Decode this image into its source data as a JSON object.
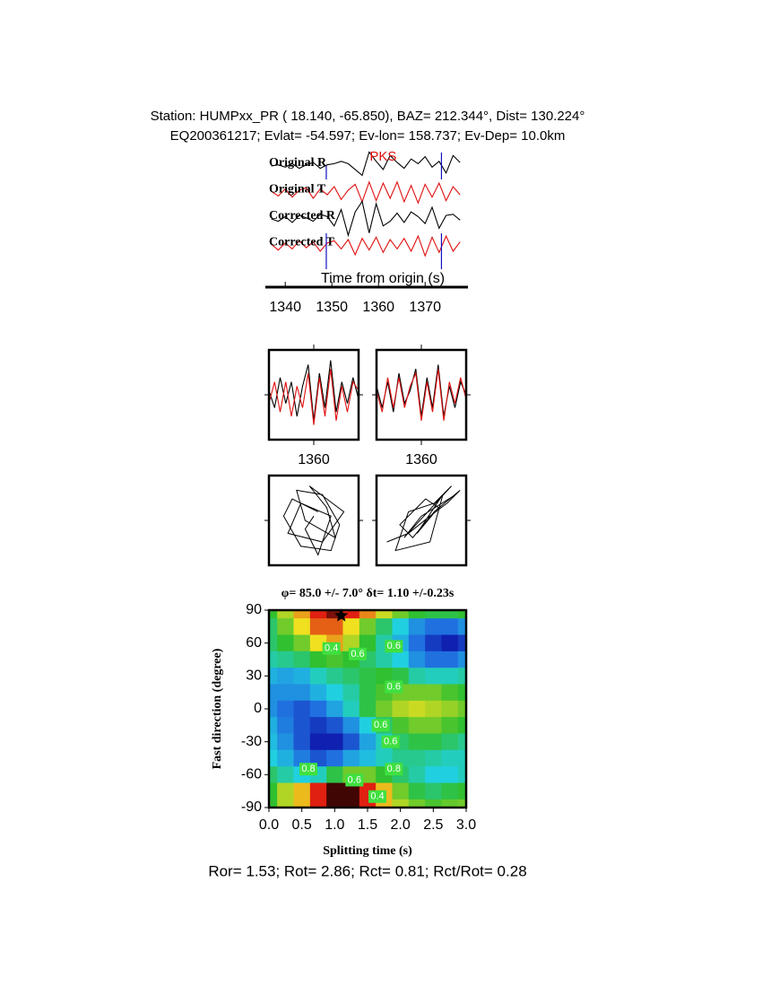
{
  "header": {
    "line1": "Station: HUMPxx_PR (  18.140,  -65.850), BAZ=  212.344°, Dist=  130.224°",
    "line2": "EQ200361217; Evlat= -54.597; Ev-lon= 158.737; Ev-Dep= 10.0km"
  },
  "chart_data": [
    {
      "type": "seismogram",
      "phase": "PKS",
      "phase_time": 1361,
      "xlabel": "Time from origin (s)",
      "xlim": [
        1336.5,
        1378.8
      ],
      "xticks": [
        1340,
        1350,
        1360,
        1370
      ],
      "window": [
        1348.8,
        1373.5
      ],
      "window_color": "#1010c0",
      "x": [
        1337,
        1338.5,
        1340,
        1341.5,
        1343,
        1344.5,
        1346,
        1347.5,
        1349,
        1350.5,
        1352,
        1353.5,
        1355,
        1356.5,
        1358,
        1359.5,
        1361,
        1362.5,
        1364,
        1365.5,
        1367,
        1368.5,
        1370,
        1371.5,
        1373,
        1374.5,
        1376,
        1377.5
      ],
      "series": [
        {
          "name": "Original R",
          "color": "#000000",
          "values": [
            0,
            0.1,
            -0.1,
            0.2,
            -0.2,
            0.1,
            0.3,
            -0.2,
            0.1,
            0.2,
            0.4,
            0.2,
            -0.3,
            -0.8,
            1.2,
            0.4,
            -0.3,
            0.9,
            0.3,
            -0.2,
            0.6,
            0.2,
            0.8,
            -0.1,
            0.4,
            -0.6,
            0.9,
            0.3
          ]
        },
        {
          "name": "Original T",
          "color": "#e01010",
          "values": [
            0.1,
            -0.3,
            0.3,
            -0.4,
            0.2,
            0.4,
            -0.5,
            0.3,
            -0.2,
            0.5,
            -0.6,
            0.2,
            0.7,
            -0.8,
            0.9,
            -0.7,
            0.8,
            -0.5,
            0.9,
            -0.8,
            0.6,
            -0.9,
            0.7,
            -0.4,
            0.8,
            -0.7,
            0.5,
            -0.2
          ]
        },
        {
          "name": "Corrected R",
          "color": "#000000",
          "values": [
            0,
            -0.2,
            0.2,
            -0.3,
            0.3,
            0.1,
            -0.2,
            0.4,
            0.2,
            -0.6,
            0.8,
            -1.4,
            0.6,
            1.5,
            -1.2,
            1.3,
            -0.6,
            -0.2,
            0.5,
            -0.3,
            0.6,
            0.2,
            -0.4,
            1.0,
            -0.8,
            0.3,
            0.4,
            -0.1
          ]
        },
        {
          "name": "Corrected T",
          "color": "#e01010",
          "values": [
            0.1,
            -0.4,
            0.2,
            -0.3,
            0.4,
            -0.2,
            0.3,
            -0.5,
            0.2,
            0.4,
            -0.3,
            0.5,
            -0.8,
            0.6,
            -0.4,
            0.7,
            -0.6,
            0.5,
            -0.3,
            0.6,
            -0.5,
            0.8,
            -0.9,
            0.7,
            -0.6,
            0.8,
            -0.5,
            0.3
          ]
        }
      ]
    },
    {
      "type": "waveform",
      "xlim": [
        1352,
        1368
      ],
      "ylim": [
        -1,
        1
      ],
      "xticks": [
        1360
      ],
      "x": [
        1352,
        1353,
        1354,
        1355,
        1356,
        1357,
        1358,
        1359,
        1360,
        1361,
        1362,
        1363,
        1364,
        1365,
        1366,
        1367,
        1368
      ],
      "series": [
        {
          "color": "#000000",
          "values": [
            0.1,
            -0.3,
            0.4,
            -0.2,
            0.3,
            -0.5,
            0.2,
            0.7,
            -0.6,
            0.5,
            -0.3,
            0.8,
            -0.4,
            0.3,
            -0.2,
            0.4,
            -0.1
          ]
        },
        {
          "color": "#e01010",
          "values": [
            -0.2,
            0.3,
            -0.4,
            0.3,
            -0.5,
            0.2,
            -0.3,
            0.5,
            -0.7,
            0.4,
            -0.5,
            0.6,
            -0.6,
            0.2,
            -0.4,
            0.3,
            0.1
          ]
        }
      ]
    },
    {
      "type": "waveform",
      "xlim": [
        1352,
        1368
      ],
      "ylim": [
        -1,
        1
      ],
      "xticks": [
        1360
      ],
      "x": [
        1352,
        1353,
        1354,
        1355,
        1356,
        1357,
        1358,
        1359,
        1360,
        1361,
        1362,
        1363,
        1364,
        1365,
        1366,
        1367,
        1368
      ],
      "series": [
        {
          "color": "#000000",
          "values": [
            0.2,
            -0.3,
            0.3,
            -0.4,
            0.5,
            -0.2,
            0.1,
            0.6,
            -0.5,
            0.4,
            -0.3,
            0.7,
            -0.5,
            0.2,
            -0.3,
            0.3,
            0
          ]
        },
        {
          "color": "#e01010",
          "values": [
            0.1,
            -0.4,
            0.4,
            -0.3,
            0.4,
            -0.3,
            0.2,
            0.5,
            -0.6,
            0.3,
            -0.4,
            0.6,
            -0.6,
            0.3,
            -0.2,
            0.4,
            -0.1
          ]
        }
      ]
    },
    {
      "type": "particle",
      "xlim": [
        -1,
        1
      ],
      "ylim": [
        -1,
        1
      ],
      "color": "#000000",
      "x": [
        0.1,
        -0.5,
        -0.7,
        -0.3,
        0.4,
        0.6,
        0.2,
        -0.4,
        -0.2,
        0.5,
        0.3,
        -0.1,
        0.7,
        0.2,
        -0.6,
        -0.3,
        0.4,
        0.1,
        -0.2,
        0.0
      ],
      "y": [
        0.2,
        0.5,
        0.1,
        -0.6,
        -0.7,
        -0.1,
        0.6,
        0.7,
        0.0,
        -0.4,
        0.3,
        0.8,
        0.2,
        -0.5,
        -0.3,
        0.4,
        0.1,
        -0.8,
        -0.2,
        0.1
      ]
    },
    {
      "type": "particle",
      "xlim": [
        -1,
        1
      ],
      "ylim": [
        -1,
        1
      ],
      "color": "#000000",
      "x": [
        -0.8,
        -0.3,
        0.2,
        0.6,
        0.9,
        0.3,
        -0.2,
        -0.5,
        0.1,
        0.4,
        -0.1,
        0.5,
        0.2,
        -0.6,
        -0.3,
        0.3,
        0.7,
        -0.4,
        0.0,
        0.8
      ],
      "y": [
        -0.5,
        -0.3,
        0.1,
        0.4,
        0.7,
        0.2,
        -0.4,
        -0.1,
        0.5,
        0.3,
        -0.3,
        0.6,
        -0.5,
        -0.7,
        0.2,
        0.4,
        0.8,
        -0.4,
        0.1,
        0.6
      ]
    },
    {
      "type": "heatmap",
      "title": "φ= 85.0 +/- 7.0° δt= 1.10 +/-0.23s",
      "xlabel": "Splitting time (s)",
      "ylabel": "Fast direction (degree)",
      "xlim": [
        0,
        3
      ],
      "ylim": [
        -90,
        90
      ],
      "xticks": [
        {
          "value": 0,
          "label": "0.0"
        },
        0.5,
        {
          "value": 1,
          "label": "1.0"
        },
        1.5,
        {
          "value": 2,
          "label": "2.0"
        },
        2.5,
        {
          "value": 3,
          "label": "3.0"
        }
      ],
      "yticks": [
        -90,
        -60,
        -30,
        0,
        30,
        60,
        90
      ],
      "x": [
        0,
        0.25,
        0.5,
        0.75,
        1,
        1.25,
        1.5,
        1.75,
        2,
        2.25,
        2.5,
        2.75,
        3
      ],
      "y": [
        90,
        75,
        60,
        45,
        30,
        15,
        0,
        -15,
        -30,
        -45,
        -60,
        -75,
        -90
      ],
      "z": [
        [
          0.6,
          0.5,
          0.4,
          0.3,
          0.25,
          0.3,
          0.38,
          0.48,
          0.55,
          0.6,
          0.62,
          0.62,
          0.6
        ],
        [
          0.65,
          0.55,
          0.45,
          0.35,
          0.35,
          0.45,
          0.55,
          0.65,
          0.75,
          0.85,
          0.9,
          0.9,
          0.85
        ],
        [
          0.65,
          0.6,
          0.55,
          0.45,
          0.4,
          0.5,
          0.6,
          0.7,
          0.8,
          0.9,
          1.0,
          1.05,
          1.0
        ],
        [
          0.7,
          0.68,
          0.65,
          0.6,
          0.58,
          0.6,
          0.65,
          0.7,
          0.75,
          0.85,
          0.9,
          0.9,
          0.85
        ],
        [
          0.8,
          0.82,
          0.8,
          0.72,
          0.68,
          0.65,
          0.62,
          0.6,
          0.62,
          0.7,
          0.72,
          0.72,
          0.7
        ],
        [
          0.85,
          0.85,
          0.85,
          0.8,
          0.75,
          0.7,
          0.62,
          0.58,
          0.55,
          0.55,
          0.55,
          0.58,
          0.6
        ],
        [
          0.85,
          0.9,
          0.95,
          0.9,
          0.82,
          0.72,
          0.62,
          0.55,
          0.5,
          0.48,
          0.5,
          0.52,
          0.55
        ],
        [
          0.8,
          0.88,
          0.95,
          1.0,
          0.95,
          0.85,
          0.75,
          0.65,
          0.58,
          0.55,
          0.55,
          0.58,
          0.6
        ],
        [
          0.78,
          0.85,
          0.95,
          1.05,
          1.05,
          0.95,
          0.82,
          0.72,
          0.65,
          0.62,
          0.62,
          0.65,
          0.68
        ],
        [
          0.75,
          0.8,
          0.88,
          0.95,
          0.9,
          0.82,
          0.78,
          0.72,
          0.68,
          0.68,
          0.7,
          0.72,
          0.72
        ],
        [
          0.65,
          0.7,
          0.75,
          0.72,
          0.62,
          0.55,
          0.55,
          0.6,
          0.65,
          0.7,
          0.75,
          0.75,
          0.72
        ],
        [
          0.6,
          0.5,
          0.42,
          0.3,
          0.22,
          0.22,
          0.3,
          0.42,
          0.55,
          0.62,
          0.65,
          0.62,
          0.6
        ],
        [
          0.6,
          0.5,
          0.42,
          0.3,
          0.22,
          0.22,
          0.3,
          0.42,
          0.5,
          0.55,
          0.58,
          0.56,
          0.55
        ]
      ],
      "colorscale": [
        [
          0.2,
          "#180000"
        ],
        [
          0.3,
          "#e02010"
        ],
        [
          0.45,
          "#f0e020"
        ],
        [
          0.6,
          "#30c030"
        ],
        [
          0.75,
          "#20d0e0"
        ],
        [
          0.9,
          "#2070e0"
        ],
        [
          1.05,
          "#1020b0"
        ]
      ],
      "best": [
        1.1,
        85
      ],
      "contour_labels": [
        {
          "label": "0.4",
          "x": 0.95,
          "y": 55
        },
        {
          "label": "0.6",
          "x": 1.35,
          "y": 50
        },
        {
          "label": "0.6",
          "x": 1.9,
          "y": 57
        },
        {
          "label": "0.6",
          "x": 1.9,
          "y": 20
        },
        {
          "label": "0.6",
          "x": 1.7,
          "y": -15
        },
        {
          "label": "0.6",
          "x": 1.85,
          "y": -30
        },
        {
          "label": "0.8",
          "x": 0.6,
          "y": -55
        },
        {
          "label": "0.6",
          "x": 1.3,
          "y": -65
        },
        {
          "label": "0.8",
          "x": 1.9,
          "y": -55
        },
        {
          "label": "0.4",
          "x": 1.65,
          "y": -80
        }
      ]
    }
  ],
  "footer": "Ror= 1.53; Rot= 2.86; Rct= 0.81; Rct/Rot= 0.28"
}
